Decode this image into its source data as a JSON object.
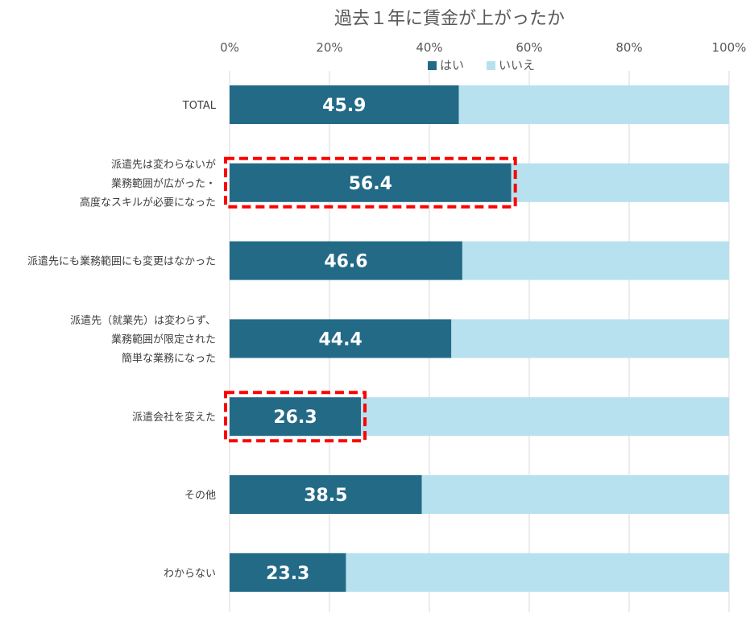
{
  "chart_data": {
    "type": "bar",
    "orientation": "horizontal",
    "stacked": true,
    "title": "過去１年に賃金が上がったか",
    "x_ticks": [
      "0%",
      "20%",
      "40%",
      "60%",
      "80%",
      "100%"
    ],
    "xlim": [
      0,
      100
    ],
    "grid": true,
    "legend_position": "top",
    "categories": [
      [
        "TOTAL"
      ],
      [
        "派遣先は変わらないが",
        "業務範囲が広がった・",
        "高度なスキルが必要になった"
      ],
      [
        "派遣先にも業務範囲にも変更はなかった"
      ],
      [
        "派遣先（就業先）は変わらず、",
        "業務範囲が限定された",
        "簡単な業務になった"
      ],
      [
        "派遣会社を変えた"
      ],
      [
        "その他"
      ],
      [
        "わからない"
      ]
    ],
    "series": [
      {
        "name": "はい",
        "color": "#236a87",
        "values": [
          45.9,
          56.4,
          46.6,
          44.4,
          26.3,
          38.5,
          23.3
        ]
      },
      {
        "name": "いいえ",
        "color": "#b8e1ef",
        "values": [
          54.1,
          43.6,
          53.4,
          55.6,
          73.7,
          61.5,
          76.7
        ]
      }
    ],
    "value_labels": [
      "45.9",
      "56.4",
      "46.6",
      "44.4",
      "26.3",
      "38.5",
      "23.3"
    ],
    "highlighted_categories": [
      1,
      4
    ],
    "highlight_color": "#ff0000"
  }
}
